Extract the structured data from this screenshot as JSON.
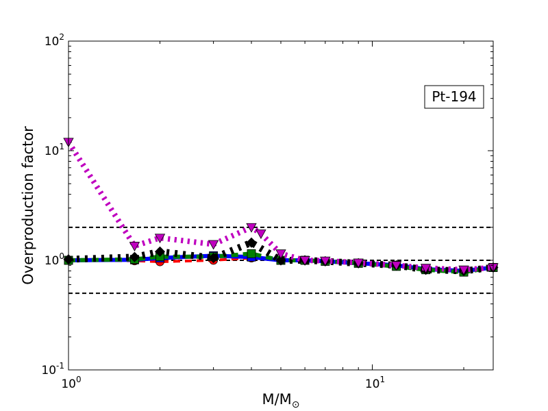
{
  "chart_data": {
    "type": "line",
    "title": "",
    "xlabel": "M/M",
    "xlabel_sub": "⊙",
    "ylabel": "Overproduction factor",
    "annotation": "Pt-194",
    "xscale": "log",
    "yscale": "log",
    "xlim": [
      1,
      25
    ],
    "ylim": [
      0.1,
      100
    ],
    "x_ticks": [
      {
        "value": 1,
        "base": "10",
        "exp": "0"
      },
      {
        "value": 10,
        "base": "10",
        "exp": "1"
      }
    ],
    "y_ticks": [
      {
        "value": 0.1,
        "base": "10",
        "exp": "-1"
      },
      {
        "value": 1,
        "base": "10",
        "exp": "0"
      },
      {
        "value": 10,
        "base": "10",
        "exp": "1"
      },
      {
        "value": 100,
        "base": "10",
        "exp": "2"
      }
    ],
    "reference_lines": [
      0.5,
      1.0,
      2.0
    ],
    "grid": false,
    "legend": "none",
    "series": [
      {
        "color": "#ff0000",
        "marker": "circle",
        "dash": "dashed",
        "width": 4,
        "points": [
          [
            1,
            1.0
          ],
          [
            1.65,
            0.99
          ],
          [
            2,
            0.97
          ],
          [
            3,
            1.0
          ],
          [
            4,
            1.05
          ],
          [
            5,
            1.0
          ],
          [
            6,
            1.0
          ],
          [
            7,
            0.98
          ],
          [
            9,
            0.94
          ],
          [
            12,
            0.9
          ],
          [
            15,
            0.84
          ],
          [
            20,
            0.8
          ],
          [
            25,
            0.86
          ]
        ]
      },
      {
        "color": "#0000ff",
        "marker": "square",
        "dash": "solid",
        "width": 6,
        "points": [
          [
            1,
            1.0
          ],
          [
            1.65,
            1.01
          ],
          [
            2,
            1.05
          ],
          [
            3,
            1.1
          ],
          [
            4,
            1.07
          ],
          [
            5,
            1.0
          ],
          [
            6,
            1.0
          ],
          [
            7,
            0.98
          ],
          [
            9,
            0.94
          ],
          [
            12,
            0.9
          ],
          [
            15,
            0.83
          ],
          [
            20,
            0.8
          ],
          [
            25,
            0.86
          ]
        ]
      },
      {
        "color": "#008000",
        "marker": "square",
        "dash": "dashed",
        "width": 6,
        "points": [
          [
            1,
            1.0
          ],
          [
            1.65,
            1.02
          ],
          [
            2,
            1.08
          ],
          [
            3,
            1.08
          ],
          [
            4,
            1.15
          ],
          [
            5,
            1.0
          ],
          [
            6,
            1.0
          ],
          [
            7,
            0.98
          ],
          [
            9,
            0.94
          ],
          [
            12,
            0.88
          ],
          [
            15,
            0.82
          ],
          [
            20,
            0.78
          ],
          [
            25,
            0.86
          ]
        ]
      },
      {
        "color": "#000000",
        "marker": "diamond",
        "dash": "dotted",
        "width": 10,
        "points": [
          [
            1,
            1.02
          ],
          [
            1.65,
            1.07
          ],
          [
            2,
            1.2
          ],
          [
            3,
            1.05
          ],
          [
            4,
            1.45
          ],
          [
            5,
            1.0
          ],
          [
            6,
            1.0
          ],
          [
            7,
            0.98
          ],
          [
            9,
            0.94
          ],
          [
            12,
            0.9
          ],
          [
            15,
            0.82
          ],
          [
            20,
            0.8
          ],
          [
            25,
            0.86
          ]
        ]
      },
      {
        "color": "#bf00bf",
        "marker": "triangle-down",
        "dash": "dotted",
        "width": 8,
        "points": [
          [
            1,
            12.0
          ],
          [
            1.65,
            1.35
          ],
          [
            2,
            1.6
          ],
          [
            3,
            1.4
          ],
          [
            4,
            2.0
          ],
          [
            4.3,
            1.75
          ],
          [
            5,
            1.15
          ],
          [
            6,
            1.0
          ],
          [
            7,
            0.99
          ],
          [
            9,
            0.95
          ],
          [
            12,
            0.9
          ],
          [
            15,
            0.85
          ],
          [
            20,
            0.82
          ],
          [
            25,
            0.86
          ]
        ]
      }
    ]
  }
}
